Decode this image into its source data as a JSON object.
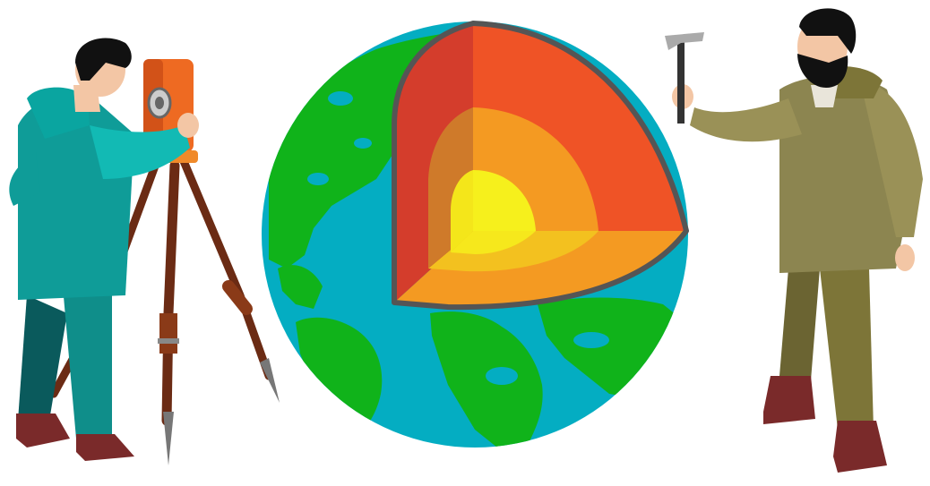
{
  "scene": {
    "background": "#ffffff",
    "left_figure": "surveyor-with-theodolite",
    "center_figure": "earth-cutaway-layers",
    "right_figure": "geologist-with-hammer"
  },
  "colors": {
    "ocean": "#04adc2",
    "land": "#10b31a",
    "crust": "#d43d2c",
    "mantle": "#ef5326",
    "outer_core": "#f49a22",
    "inner_core": "#f6f01c",
    "teal_jacket": "#0f9c98",
    "olive_jacket": "#8c8550",
    "boots": "#7a2a2a"
  }
}
